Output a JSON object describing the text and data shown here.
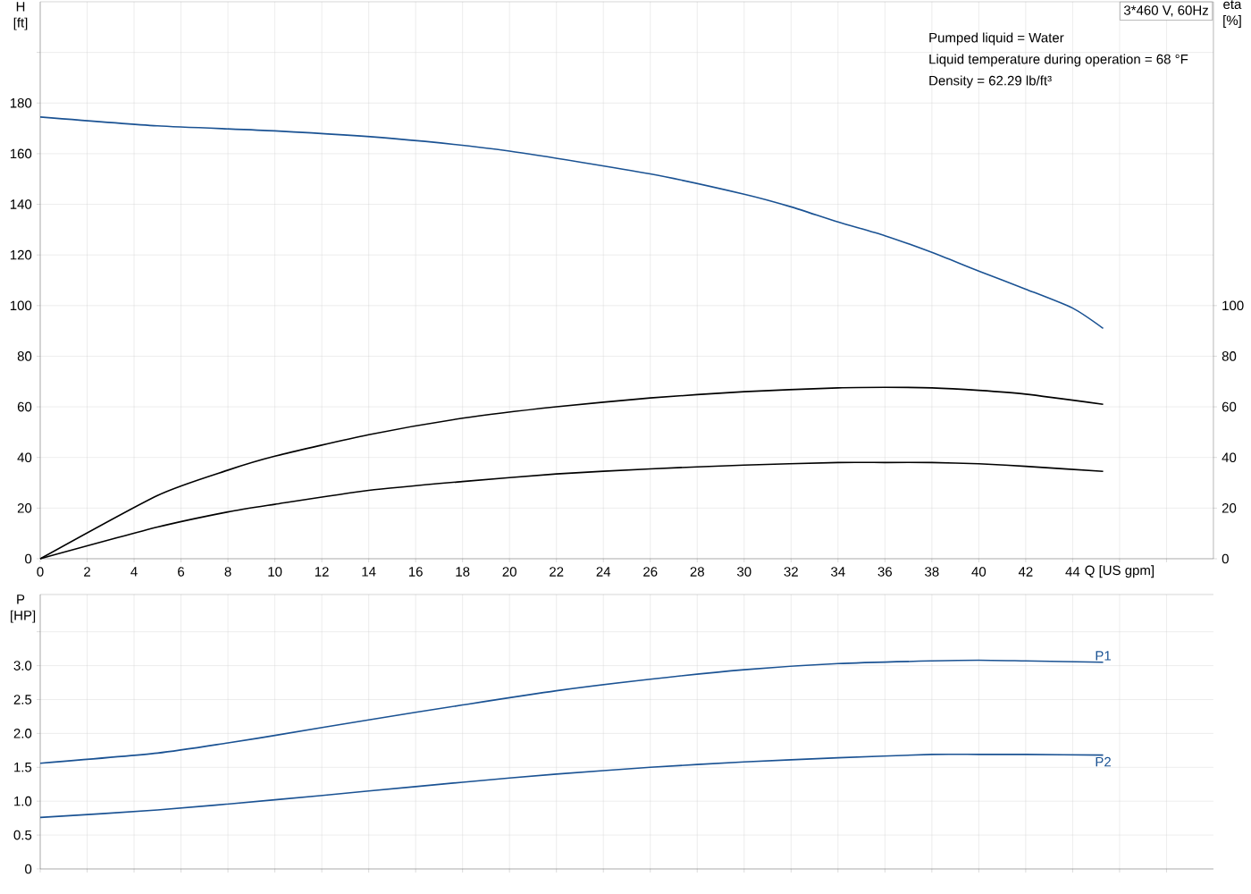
{
  "chart_data": [
    {
      "type": "line",
      "title": "3*460 V, 60Hz",
      "xlabel": "Q [US gpm]",
      "ylabel": "H [ft]",
      "y2label": "eta [%]",
      "annotations": [
        "Pumped liquid = Water",
        "Liquid temperature during operation = 68 °F",
        "Density = 62.29 lb/ft³"
      ],
      "xlim": [
        0,
        50
      ],
      "ylim": [
        0,
        220
      ],
      "y2lim": [
        0,
        220
      ],
      "xticks": [
        0,
        2,
        4,
        6,
        8,
        10,
        12,
        14,
        16,
        18,
        20,
        22,
        24,
        26,
        28,
        30,
        32,
        34,
        36,
        38,
        40,
        42,
        44,
        {
          "value": 46,
          "label": null
        },
        {
          "value": 48,
          "label": null
        }
      ],
      "yticks": [
        0,
        20,
        40,
        60,
        80,
        100,
        120,
        140,
        160,
        180,
        {
          "value": 200,
          "label": null
        }
      ],
      "y2ticks": [
        0,
        20,
        40,
        60,
        80,
        100
      ],
      "grid": true,
      "series": [
        {
          "color": "#1a5293",
          "x": [
            0,
            5,
            10,
            15,
            20,
            26,
            30,
            32,
            34,
            36,
            38,
            40,
            42,
            44,
            45.3
          ],
          "values": [
            174.5,
            171,
            169,
            166,
            161,
            152,
            144,
            139,
            133,
            127.6,
            121,
            113.6,
            106.5,
            99,
            91
          ]
        },
        {
          "color": "#000000",
          "axis": "y2",
          "x": [
            0,
            5,
            8,
            10,
            14,
            18,
            22,
            26,
            30,
            34,
            36,
            38,
            40,
            42,
            45.3
          ],
          "values": [
            0,
            25,
            35,
            40.5,
            49,
            55.5,
            60,
            63.5,
            66,
            67.5,
            67.7,
            67.5,
            66.5,
            65,
            61
          ]
        },
        {
          "color": "#000000",
          "axis": "y2",
          "x": [
            0,
            5,
            8,
            10,
            14,
            18,
            22,
            26,
            30,
            34,
            36,
            38,
            40,
            42,
            45.3
          ],
          "values": [
            0,
            12.5,
            18.5,
            21.5,
            27,
            30.5,
            33.5,
            35.5,
            37,
            38,
            38,
            38,
            37.5,
            36.5,
            34.5
          ]
        }
      ]
    },
    {
      "type": "line",
      "ylabel": "P [HP]",
      "xlim": [
        0,
        50
      ],
      "ylim": [
        0,
        4.05
      ],
      "xticks": [
        {
          "value": 0,
          "label": null
        },
        {
          "value": 2,
          "label": null
        },
        {
          "value": 4,
          "label": null
        },
        {
          "value": 6,
          "label": null
        },
        {
          "value": 8,
          "label": null
        },
        {
          "value": 10,
          "label": null
        },
        {
          "value": 12,
          "label": null
        },
        {
          "value": 14,
          "label": null
        },
        {
          "value": 16,
          "label": null
        },
        {
          "value": 18,
          "label": null
        },
        {
          "value": 20,
          "label": null
        },
        {
          "value": 22,
          "label": null
        },
        {
          "value": 24,
          "label": null
        },
        {
          "value": 26,
          "label": null
        },
        {
          "value": 28,
          "label": null
        },
        {
          "value": 30,
          "label": null
        },
        {
          "value": 32,
          "label": null
        },
        {
          "value": 34,
          "label": null
        },
        {
          "value": 36,
          "label": null
        },
        {
          "value": 38,
          "label": null
        },
        {
          "value": 40,
          "label": null
        },
        {
          "value": 42,
          "label": null
        },
        {
          "value": 44,
          "label": null
        },
        {
          "value": 46,
          "label": null
        },
        {
          "value": 48,
          "label": null
        }
      ],
      "yticks": [
        0,
        0.5,
        {
          "value": 1,
          "label": "1.0"
        },
        1.5,
        {
          "value": 2,
          "label": "2.0"
        },
        2.5,
        {
          "value": 3,
          "label": "3.0"
        },
        {
          "value": 3.5,
          "label": null
        }
      ],
      "tick_labels": "y",
      "grid": true,
      "series": [
        {
          "name": "P1",
          "color": "#1a5293",
          "x": [
            0,
            5,
            8,
            10,
            14,
            18,
            22,
            26,
            30,
            34,
            38,
            40,
            42,
            45.3
          ],
          "values": [
            1.56,
            1.71,
            1.86,
            1.97,
            2.2,
            2.42,
            2.63,
            2.8,
            2.94,
            3.03,
            3.07,
            3.08,
            3.07,
            3.05
          ]
        },
        {
          "name": "P2",
          "color": "#1a5293",
          "x": [
            0,
            5,
            10,
            14,
            18,
            22,
            26,
            30,
            34,
            38,
            40,
            42,
            45.3
          ],
          "values": [
            0.76,
            0.87,
            1.02,
            1.15,
            1.28,
            1.4,
            1.5,
            1.58,
            1.64,
            1.69,
            1.69,
            1.69,
            1.68
          ]
        }
      ]
    }
  ]
}
